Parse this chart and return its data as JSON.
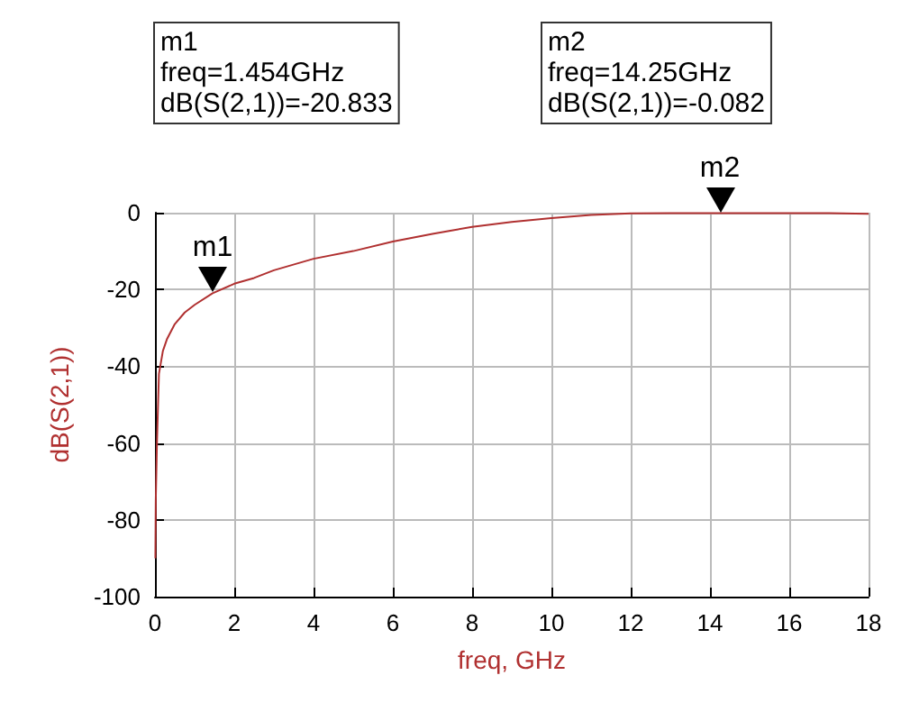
{
  "chart_data": {
    "type": "line",
    "xlabel": "freq, GHz",
    "ylabel": "dB(S(2,1))",
    "xlim": [
      0,
      18
    ],
    "xticks": [
      0,
      2,
      4,
      6,
      8,
      10,
      12,
      14,
      16,
      18
    ],
    "ylim": [
      -100,
      0
    ],
    "yticks": [
      -100,
      -80,
      -60,
      -40,
      -20,
      0
    ],
    "grid": true,
    "marker": "none",
    "line_style": "solid",
    "annotations": [
      "m1\nfreq=1.454GHz\ndB(S(2,1))=-20.833",
      "m2\nfreq=14.25GHz\ndB(S(2,1))=-0.082",
      {
        "text": "m1",
        "x": 1.454,
        "y": -20.833
      },
      {
        "text": "m2",
        "x": 14.25,
        "y": -0.082
      }
    ],
    "series": [
      {
        "color": "#b03030",
        "x": [
          0.01,
          0.02,
          0.05,
          0.1,
          0.2,
          0.3,
          0.5,
          0.75,
          1,
          1.454,
          2,
          2.5,
          3,
          4,
          5,
          6,
          7,
          8,
          9,
          10,
          11,
          12,
          13,
          14.25,
          16,
          17,
          18
        ],
        "values": [
          -90,
          -75,
          -60,
          -42,
          -36,
          -33,
          -29,
          -26,
          -24,
          -21,
          -18.5,
          -17,
          -15,
          -12,
          -10,
          -7.5,
          -5.5,
          -3.7,
          -2.4,
          -1.4,
          -0.6,
          -0.2,
          -0.1,
          -0.1,
          -0.1,
          -0.1,
          -0.3
        ]
      }
    ]
  }
}
